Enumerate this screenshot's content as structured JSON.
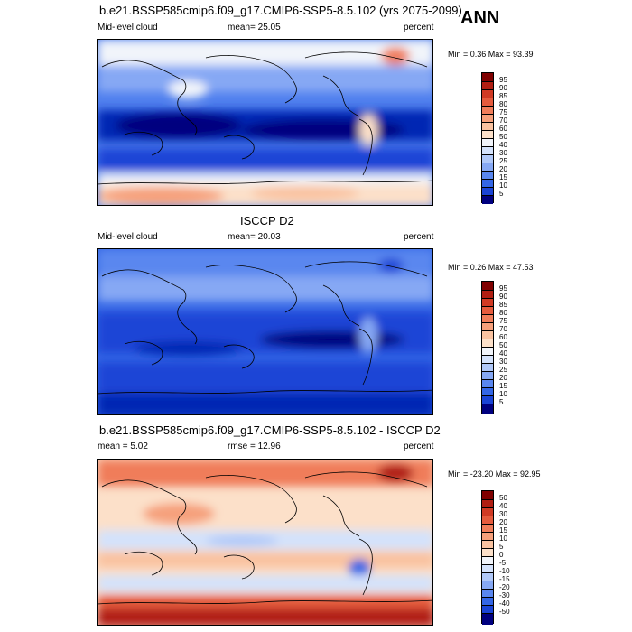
{
  "season": "ANN",
  "colors": {
    "seq": [
      "#00007f",
      "#0026b3",
      "#1a44d6",
      "#3366e6",
      "#5a87ef",
      "#86a8f4",
      "#b0c8f8",
      "#d4e2fb",
      "#f1f4fa",
      "#fce0c9",
      "#f9c2a0",
      "#f6a07b",
      "#f07d5a",
      "#e55b3d",
      "#d03a24",
      "#b01e12",
      "#7f0000"
    ],
    "diff": [
      "#00007f",
      "#0026b3",
      "#1a44d6",
      "#3366e6",
      "#5a87ef",
      "#86a8f4",
      "#b0c8f8",
      "#d4e2fb",
      "#f1f4fa",
      "#fce0c9",
      "#f9c2a0",
      "#f6a07b",
      "#f07d5a",
      "#e55b3d",
      "#d03a24",
      "#b01e12",
      "#7f0000"
    ]
  },
  "panels": [
    {
      "title": "b.e21.BSSP585cmip6.f09_g17.CMIP6-SSP5-8.5.102 (yrs 2075-2099)",
      "left_label": "Mid-level cloud",
      "mean": "mean=  25.05",
      "units": "percent",
      "minmax": "Min =   0.36 Max =  93.39",
      "ticks": [
        "95",
        "90",
        "85",
        "80",
        "75",
        "70",
        "60",
        "50",
        "40",
        "30",
        "25",
        "20",
        "15",
        "10",
        "5"
      ]
    },
    {
      "title": "ISCCP D2",
      "left_label": "Mid-level cloud",
      "mean": "mean=  20.03",
      "units": "percent",
      "minmax": "Min =   0.26 Max =  47.53",
      "ticks": [
        "95",
        "90",
        "85",
        "80",
        "75",
        "70",
        "60",
        "50",
        "40",
        "30",
        "25",
        "20",
        "15",
        "10",
        "5"
      ]
    },
    {
      "title": "b.e21.BSSP585cmip6.f09_g17.CMIP6-SSP5-8.5.102 - ISCCP D2",
      "left_label": "mean =   5.02",
      "mean": "rmse =  12.96",
      "units": "percent",
      "minmax": "Min = -23.20 Max =  92.95",
      "ticks": [
        "50",
        "40",
        "30",
        "20",
        "15",
        "10",
        "5",
        "0",
        "-5",
        "-10",
        "-15",
        "-20",
        "-30",
        "-40",
        "-50"
      ]
    }
  ]
}
